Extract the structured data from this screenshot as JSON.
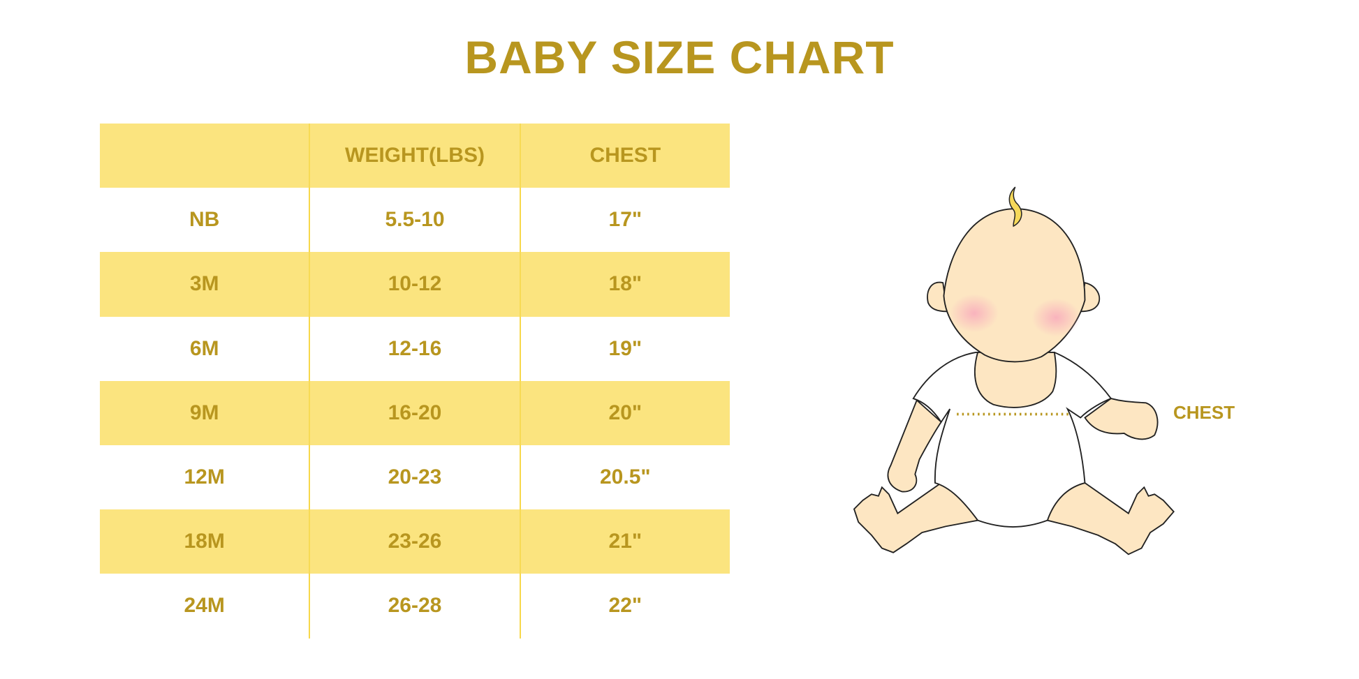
{
  "title": "BABY SIZE CHART",
  "table": {
    "headers": [
      "",
      "WEIGHT(LBS)",
      "CHEST"
    ],
    "rows": [
      [
        "NB",
        "5.5-10",
        "17\""
      ],
      [
        "3M",
        "10-12",
        "18\""
      ],
      [
        "6M",
        "12-16",
        "19\""
      ],
      [
        "9M",
        "16-20",
        "20\""
      ],
      [
        "12M",
        "20-23",
        "20.5\""
      ],
      [
        "18M",
        "23-26",
        "21\""
      ],
      [
        "24M",
        "26-28",
        "22\""
      ]
    ]
  },
  "illustration": {
    "chest_label": "CHEST"
  },
  "colors": {
    "text": "#b8961f",
    "band": "#fbe47f",
    "skin": "#fde6c2",
    "blush": "#f9b9c0"
  }
}
